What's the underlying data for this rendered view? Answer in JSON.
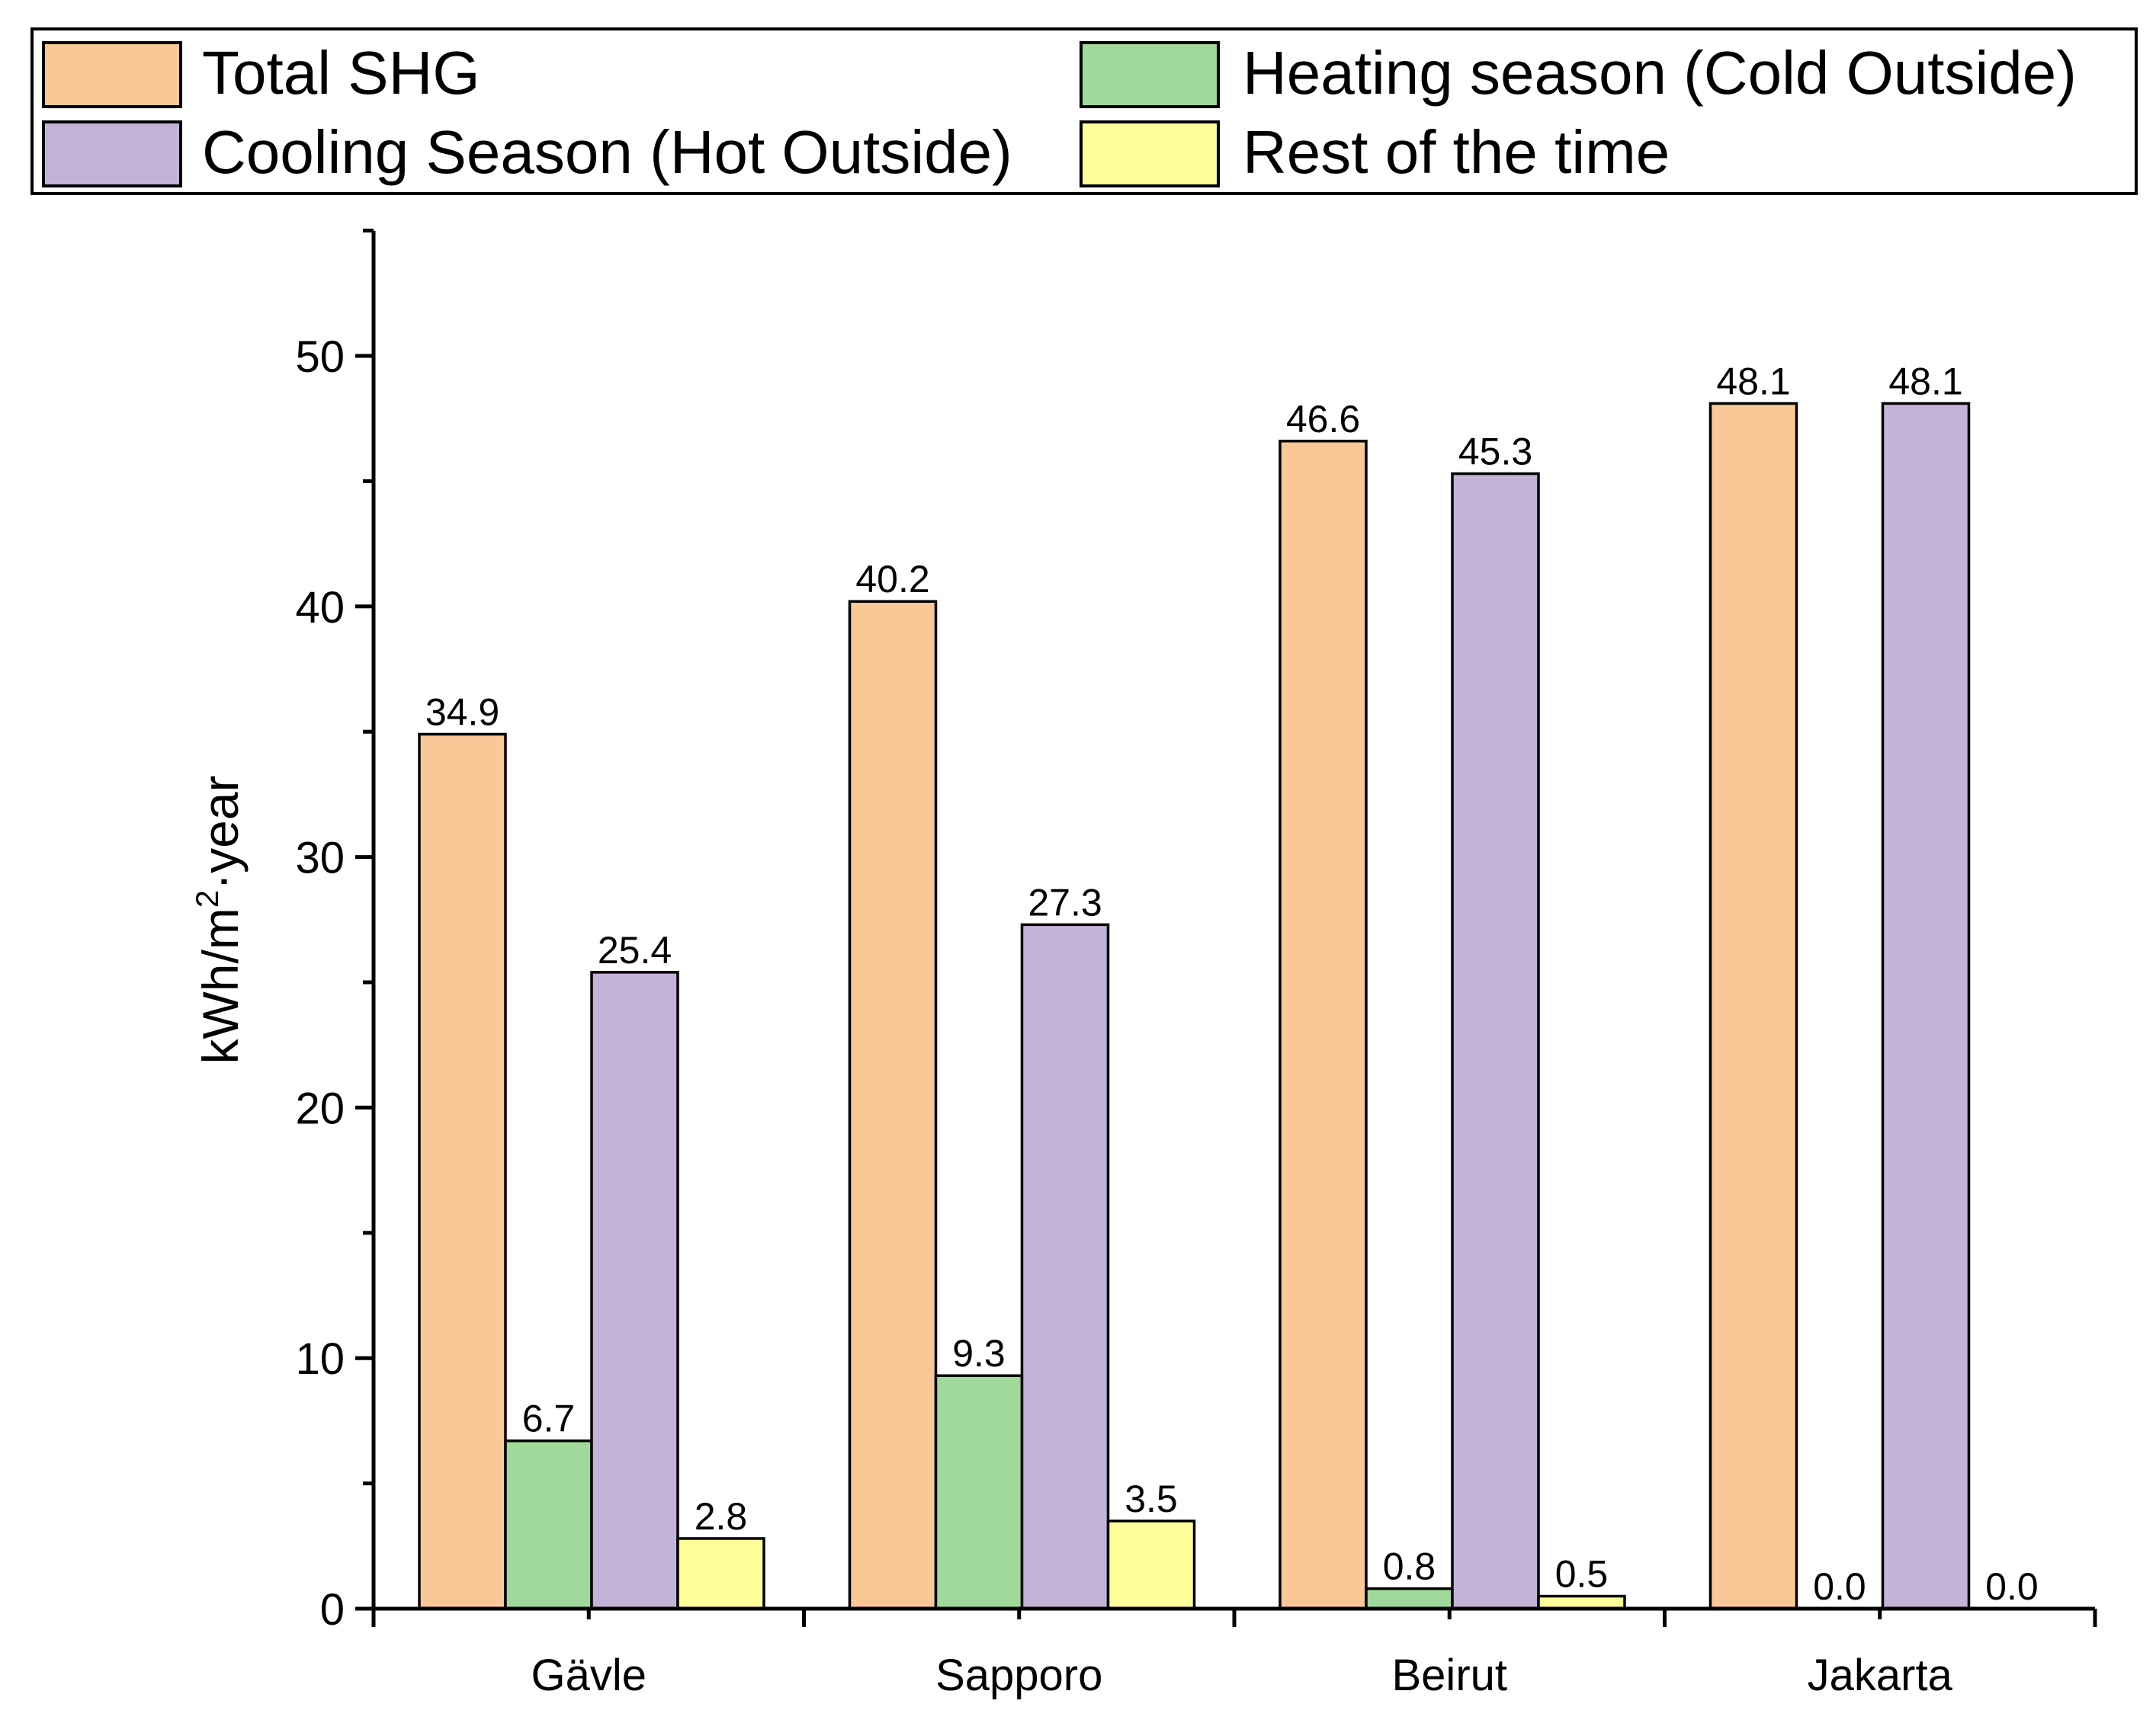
{
  "chart_data": {
    "type": "bar",
    "title": "",
    "xlabel": "",
    "ylabel": "kWh/m²·year",
    "ylabel_parts": {
      "prefix": "kWh/m",
      "superscript": "2",
      "suffix": "·year"
    },
    "ylim": [
      0,
      55
    ],
    "yticks": [
      0,
      10,
      20,
      30,
      40,
      50
    ],
    "yticks_minor_step": 5,
    "categories": [
      "Gävle",
      "Sapporo",
      "Beirut",
      "Jakarta"
    ],
    "series": [
      {
        "name": "Total SHG",
        "color": "#f9c896",
        "values": [
          34.9,
          40.2,
          46.6,
          48.1
        ],
        "labels": [
          "34.9",
          "40.2",
          "46.6",
          "48.1"
        ]
      },
      {
        "name": "Heating season (Cold Outside)",
        "color": "#a1d99b",
        "values": [
          6.7,
          9.3,
          0.8,
          0.0
        ],
        "labels": [
          "6.7",
          "9.3",
          "0.8",
          "0.0"
        ]
      },
      {
        "name": "Cooling Season (Hot Outside)",
        "color": "#c4b3d8",
        "values": [
          25.4,
          27.3,
          45.3,
          48.1
        ],
        "labels": [
          "25.4",
          "27.3",
          "45.3",
          "48.1"
        ]
      },
      {
        "name": "Rest of the time",
        "color": "#fdfd9a",
        "values": [
          2.8,
          3.5,
          0.5,
          0.0
        ],
        "labels": [
          "2.8",
          "3.5",
          "0.5",
          "0.0"
        ]
      }
    ],
    "legend": {
      "position": "top",
      "entries": [
        "Total SHG",
        "Heating season (Cold Outside)",
        "Cooling Season (Hot Outside)",
        "Rest of the time"
      ]
    },
    "grid": false
  }
}
